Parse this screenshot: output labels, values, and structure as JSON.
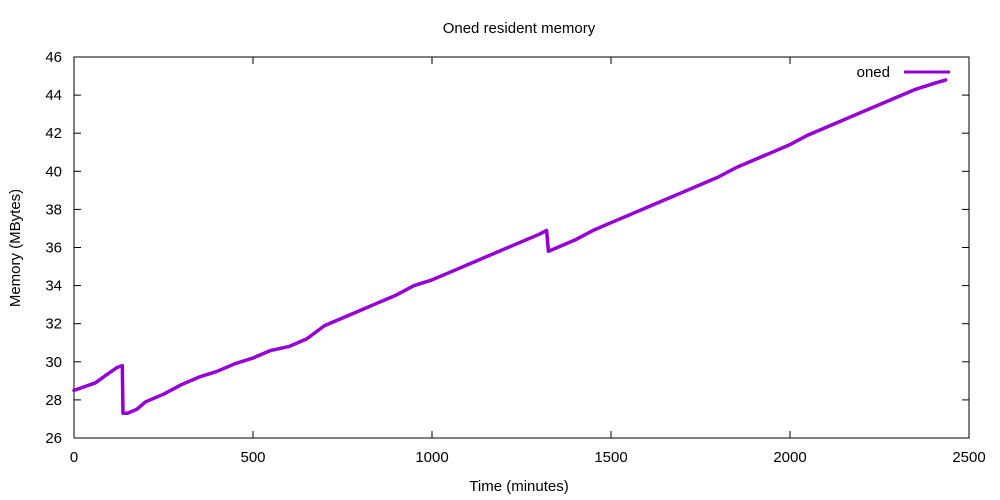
{
  "chart_data": {
    "type": "line",
    "title": "Oned resident memory",
    "xlabel": "Time (minutes)",
    "ylabel": "Memory (MBytes)",
    "xlim": [
      0,
      2500
    ],
    "ylim": [
      26,
      46
    ],
    "xticks": [
      0,
      500,
      1000,
      1500,
      2000,
      2500
    ],
    "yticks": [
      26,
      28,
      30,
      32,
      34,
      36,
      38,
      40,
      42,
      44,
      46
    ],
    "grid": false,
    "legend_position": "top-right",
    "series": [
      {
        "name": "oned",
        "color": "#9400d3",
        "x": [
          0,
          30,
          60,
          90,
          120,
          135,
          137,
          150,
          175,
          200,
          250,
          300,
          350,
          400,
          450,
          500,
          550,
          600,
          650,
          700,
          750,
          800,
          850,
          900,
          950,
          1000,
          1050,
          1100,
          1150,
          1200,
          1250,
          1300,
          1320,
          1325,
          1350,
          1400,
          1450,
          1500,
          1550,
          1600,
          1650,
          1700,
          1750,
          1800,
          1850,
          1900,
          1950,
          2000,
          2050,
          2100,
          2150,
          2200,
          2250,
          2300,
          2350,
          2400,
          2435
        ],
        "y": [
          28.5,
          28.7,
          28.9,
          29.3,
          29.7,
          29.8,
          27.3,
          27.3,
          27.5,
          27.9,
          28.3,
          28.8,
          29.2,
          29.5,
          29.9,
          30.2,
          30.6,
          30.8,
          31.2,
          31.9,
          32.3,
          32.7,
          33.1,
          33.5,
          34.0,
          34.3,
          34.7,
          35.1,
          35.5,
          35.9,
          36.3,
          36.7,
          36.9,
          35.8,
          36.0,
          36.4,
          36.9,
          37.3,
          37.7,
          38.1,
          38.5,
          38.9,
          39.3,
          39.7,
          40.2,
          40.6,
          41.0,
          41.4,
          41.9,
          42.3,
          42.7,
          43.1,
          43.5,
          43.9,
          44.3,
          44.6,
          44.8
        ]
      }
    ]
  }
}
